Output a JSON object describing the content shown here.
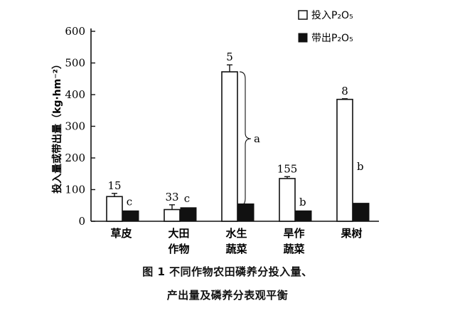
{
  "chart_data": {
    "type": "bar",
    "ylabel": "投入量或带出量（kg·hm⁻²）",
    "ylim": [
      0,
      600
    ],
    "yticks": [
      0,
      100,
      200,
      300,
      400,
      500,
      600
    ],
    "categories": [
      "草皮",
      "大田\n作物",
      "水生\n蔬菜",
      "旱作\n蔬菜",
      "果树"
    ],
    "series": [
      {
        "name": "投入P₂O₅",
        "color": "#ffffff",
        "values": [
          78,
          37,
          472,
          135,
          385
        ],
        "errors": [
          10,
          15,
          22,
          6,
          2
        ]
      },
      {
        "name": "带出P₂O₅",
        "color": "#111111",
        "values": [
          33,
          43,
          55,
          33,
          57
        ],
        "errors": [
          0,
          0,
          0,
          0,
          0
        ]
      }
    ],
    "sample_counts": [
      "15",
      "33",
      "5",
      "155",
      "8"
    ],
    "significance": [
      "c",
      "c",
      "a",
      "b",
      "b"
    ],
    "legend_position": "top-right",
    "grid": false
  },
  "caption_line1": "图 1   不同作物农田磷养分投入量、",
  "caption_line2": "产出量及磷养分表观平衡"
}
